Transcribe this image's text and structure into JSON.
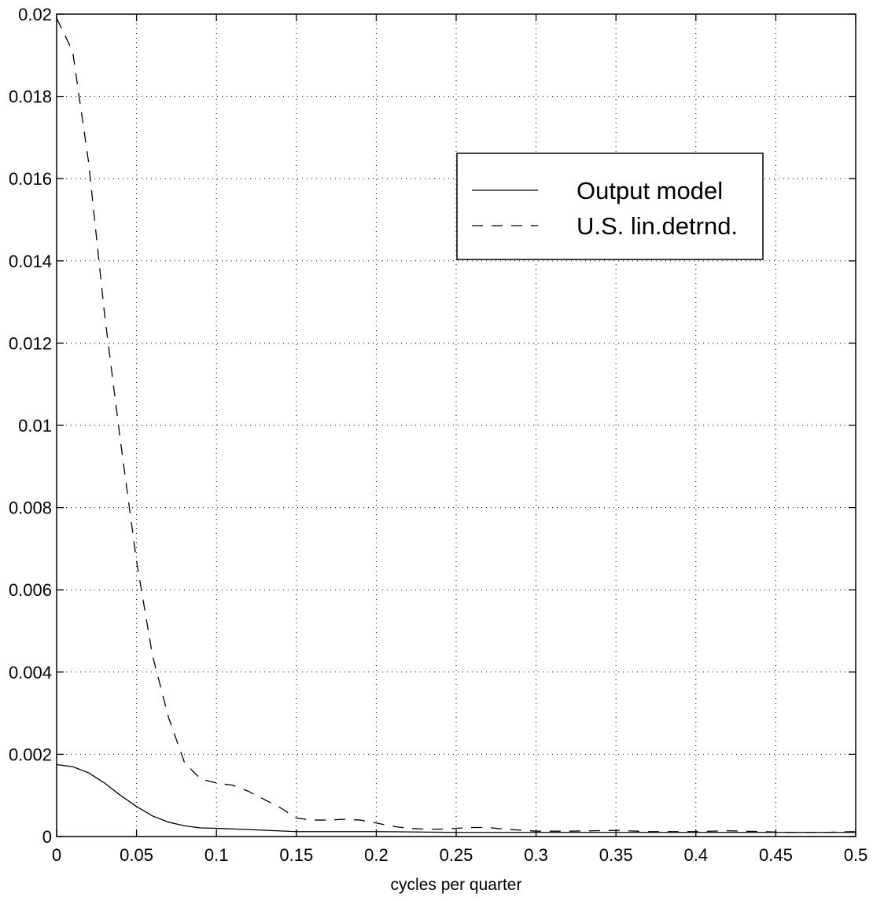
{
  "chart_data": {
    "type": "line",
    "title": "",
    "xlabel": "cycles per quarter",
    "ylabel": "",
    "xlim": [
      0,
      0.5
    ],
    "ylim": [
      0,
      0.02
    ],
    "grid": true,
    "legend_position": "top-right",
    "x_ticks": [
      "0",
      "0.05",
      "0.1",
      "0.15",
      "0.2",
      "0.25",
      "0.3",
      "0.35",
      "0.4",
      "0.45",
      "0.5"
    ],
    "y_ticks": [
      "0",
      "0.002",
      "0.004",
      "0.006",
      "0.008",
      "0.01",
      "0.012",
      "0.014",
      "0.016",
      "0.018",
      "0.02"
    ],
    "series": [
      {
        "name": "Output model",
        "style": "solid",
        "color": "#000000",
        "points": [
          [
            0,
            0.00175
          ],
          [
            0.01,
            0.0017
          ],
          [
            0.02,
            0.00155
          ],
          [
            0.03,
            0.0013
          ],
          [
            0.04,
            0.001
          ],
          [
            0.05,
            0.00073
          ],
          [
            0.06,
            0.0005
          ],
          [
            0.07,
            0.00035
          ],
          [
            0.08,
            0.00026
          ],
          [
            0.09,
            0.00021
          ],
          [
            0.1,
            0.0002
          ],
          [
            0.12,
            0.00017
          ],
          [
            0.15,
            0.00012
          ],
          [
            0.18,
            0.00012
          ],
          [
            0.2,
            0.00012
          ],
          [
            0.25,
            0.0001
          ],
          [
            0.3,
            0.0001
          ],
          [
            0.35,
            0.0001
          ],
          [
            0.4,
            0.0001
          ],
          [
            0.45,
            0.0001
          ],
          [
            0.5,
            0.0001
          ]
        ]
      },
      {
        "name": "U.S. lin.detrnd.",
        "style": "dashed",
        "color": "#000000",
        "points": [
          [
            0,
            0.0199
          ],
          [
            0.01,
            0.0191
          ],
          [
            0.02,
            0.0164
          ],
          [
            0.03,
            0.0127
          ],
          [
            0.04,
            0.0096
          ],
          [
            0.05,
            0.0067
          ],
          [
            0.06,
            0.0044
          ],
          [
            0.07,
            0.0029
          ],
          [
            0.08,
            0.0018
          ],
          [
            0.09,
            0.0014
          ],
          [
            0.1,
            0.0013
          ],
          [
            0.11,
            0.00125
          ],
          [
            0.12,
            0.0011
          ],
          [
            0.13,
            0.0009
          ],
          [
            0.14,
            0.0007
          ],
          [
            0.15,
            0.00045
          ],
          [
            0.16,
            0.0004
          ],
          [
            0.17,
            0.0004
          ],
          [
            0.18,
            0.00042
          ],
          [
            0.19,
            0.0004
          ],
          [
            0.2,
            0.00033
          ],
          [
            0.21,
            0.00025
          ],
          [
            0.22,
            0.0002
          ],
          [
            0.23,
            0.00018
          ],
          [
            0.24,
            0.00018
          ],
          [
            0.25,
            0.0002
          ],
          [
            0.26,
            0.00022
          ],
          [
            0.27,
            0.00022
          ],
          [
            0.28,
            0.00018
          ],
          [
            0.3,
            0.00013
          ],
          [
            0.32,
            0.00013
          ],
          [
            0.35,
            0.00015
          ],
          [
            0.37,
            0.00012
          ],
          [
            0.4,
            0.00012
          ],
          [
            0.42,
            0.00014
          ],
          [
            0.44,
            0.00012
          ],
          [
            0.46,
            0.0001
          ],
          [
            0.48,
            0.0001
          ],
          [
            0.5,
            0.00012
          ]
        ]
      }
    ]
  }
}
